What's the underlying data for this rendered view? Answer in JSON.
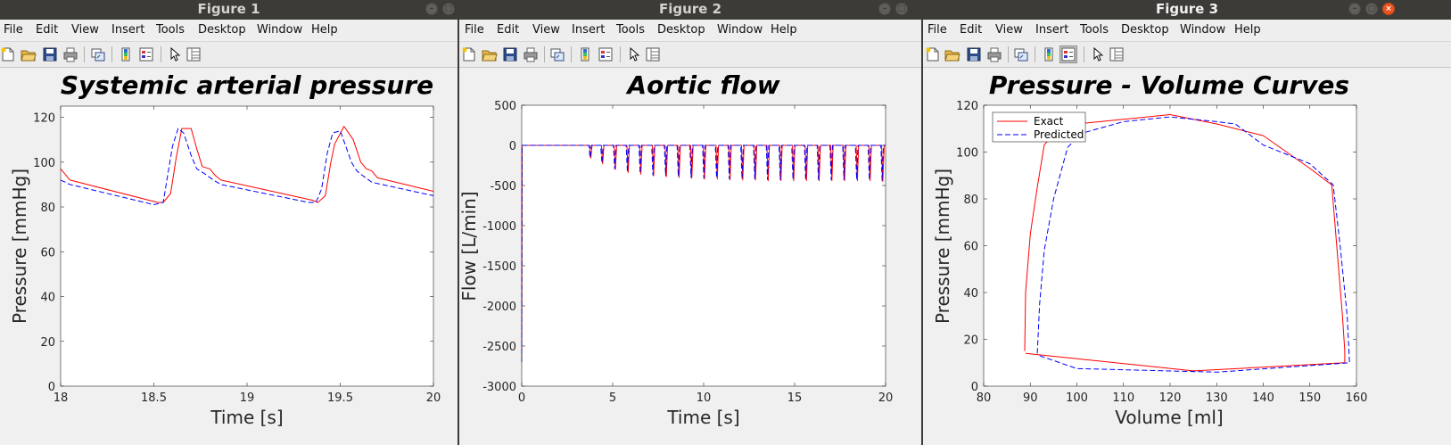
{
  "menus": [
    "File",
    "Edit",
    "View",
    "Insert",
    "Tools",
    "Desktop",
    "Window",
    "Help"
  ],
  "colors": {
    "exact": "#ff0000",
    "predicted": "#0000ff",
    "titlebar": "#3c3b37",
    "close_button": "#e95420"
  },
  "toolbar_icons": [
    "new-figure-icon",
    "open-file-icon",
    "save-icon",
    "print-icon",
    "link-plot-icon",
    "insert-colorbar-icon",
    "insert-legend-icon",
    "edit-plot-pointer-icon",
    "property-inspector-icon"
  ],
  "windows": [
    {
      "title": "Figure 1"
    },
    {
      "title": "Figure 2"
    },
    {
      "title": "Figure 3"
    }
  ],
  "chart_data": [
    {
      "type": "line",
      "title": "Systemic arterial pressure",
      "xlabel": "Time [s]",
      "ylabel": "Pressure [mmHg]",
      "xlim": [
        18,
        20
      ],
      "ylim": [
        0,
        125
      ],
      "xticks": [
        18,
        18.5,
        19,
        19.5,
        20
      ],
      "yticks": [
        0,
        20,
        40,
        60,
        80,
        100,
        120
      ],
      "xtick_labels": [
        "18",
        "18.5",
        "19",
        "19.5",
        "20"
      ],
      "ytick_labels": [
        "0",
        "20",
        "40",
        "60",
        "80",
        "100",
        "120"
      ],
      "grid": false,
      "series": [
        {
          "style": "solid",
          "color": "#ff0000",
          "x": [
            18,
            18.05,
            18.52,
            18.55,
            18.59,
            18.62,
            18.65,
            18.7,
            18.73,
            18.76,
            18.8,
            18.83,
            18.86,
            19.35,
            19.38,
            19.42,
            19.45,
            19.47,
            19.52,
            19.57,
            19.61,
            19.64,
            19.67,
            19.7,
            20
          ],
          "y": [
            97,
            92,
            82,
            82,
            86,
            102,
            115,
            115,
            106,
            98,
            97,
            94,
            92,
            83,
            82,
            85,
            100,
            108,
            116,
            110,
            100,
            97,
            96,
            93,
            87
          ]
        },
        {
          "style": "dashed",
          "color": "#0000ff",
          "x": [
            18,
            18.05,
            18.5,
            18.55,
            18.58,
            18.6,
            18.63,
            18.66,
            18.7,
            18.73,
            18.77,
            18.82,
            18.86,
            19.33,
            19.37,
            19.4,
            19.43,
            19.46,
            19.5,
            19.53,
            19.56,
            19.59,
            19.62,
            19.67,
            20
          ],
          "y": [
            92,
            90,
            81,
            82,
            97,
            107,
            115,
            113,
            103,
            97,
            95,
            92,
            90,
            82,
            82,
            88,
            104,
            113,
            114,
            107,
            100,
            96,
            94,
            91,
            85
          ]
        }
      ]
    },
    {
      "type": "line",
      "title": "Aortic flow",
      "xlabel": "Time [s]",
      "ylabel": "Flow [L/min]",
      "xlim": [
        0,
        20
      ],
      "ylim": [
        -3000,
        500
      ],
      "xticks": [
        0,
        5,
        10,
        15,
        20
      ],
      "yticks": [
        -3000,
        -2500,
        -2000,
        -1500,
        -1000,
        -500,
        0,
        500
      ],
      "xtick_labels": [
        "0",
        "5",
        "10",
        "15",
        "20"
      ],
      "ytick_labels": [
        "-3000",
        "-2500",
        "-2000",
        "-1500",
        "-1000",
        "-500",
        "0",
        "500"
      ],
      "grid": false,
      "pulse_times": [
        3.75,
        4.4,
        5.1,
        5.8,
        6.5,
        7.2,
        7.9,
        8.6,
        9.3,
        10,
        10.7,
        11.4,
        12.1,
        12.8,
        13.5,
        14.2,
        14.9,
        15.6,
        16.3,
        17,
        17.7,
        18.4,
        19.1,
        19.8
      ],
      "pulse_min": [
        -160,
        -230,
        -300,
        -340,
        -360,
        -380,
        -390,
        -400,
        -410,
        -420,
        -420,
        -430,
        -430,
        -430,
        -440,
        -440,
        -440,
        -440,
        -440,
        -440,
        -440,
        -440,
        -440,
        -450
      ],
      "initial_min": {
        "exact": -2650,
        "predicted": -2700
      },
      "series": [
        {
          "style": "solid",
          "color": "#ff0000"
        },
        {
          "style": "dashed",
          "color": "#0000ff"
        }
      ]
    },
    {
      "type": "line",
      "title": "Pressure - Volume Curves",
      "xlabel": "Volume [ml]",
      "ylabel": "Pressure [mmHg]",
      "xlim": [
        80,
        160
      ],
      "ylim": [
        0,
        120
      ],
      "xticks": [
        80,
        90,
        100,
        110,
        120,
        130,
        140,
        150,
        160
      ],
      "yticks": [
        0,
        20,
        40,
        60,
        80,
        100,
        120
      ],
      "xtick_labels": [
        "80",
        "90",
        "100",
        "110",
        "120",
        "130",
        "140",
        "150",
        "160"
      ],
      "ytick_labels": [
        "0",
        "20",
        "40",
        "60",
        "80",
        "100",
        "120"
      ],
      "grid": false,
      "legend": {
        "position": "top-left",
        "entries": [
          "Exact",
          "Predicted"
        ]
      },
      "series": [
        {
          "name": "Exact",
          "style": "solid",
          "color": "#ff0000",
          "x": [
            88.8,
            89,
            90,
            91.5,
            93,
            96,
            100,
            110,
            120,
            130,
            140,
            150,
            154.7,
            157,
            157.5,
            157.5,
            125,
            89
          ],
          "y": [
            15,
            40,
            65,
            85,
            103,
            110,
            112,
            114,
            116,
            112,
            107,
            93,
            86,
            30,
            15,
            10,
            6.5,
            14
          ]
        },
        {
          "name": "Predicted",
          "style": "dashed",
          "color": "#0000ff",
          "x": [
            91.5,
            92,
            93,
            95,
            98,
            101,
            110,
            120,
            130,
            134,
            140,
            150,
            155,
            156.5,
            158,
            158.5,
            130,
            100,
            92
          ],
          "y": [
            14,
            35,
            58,
            80,
            102,
            108,
            113,
            115,
            113,
            112,
            103,
            95,
            86,
            60,
            30,
            10,
            6,
            7.5,
            13
          ]
        }
      ]
    }
  ]
}
